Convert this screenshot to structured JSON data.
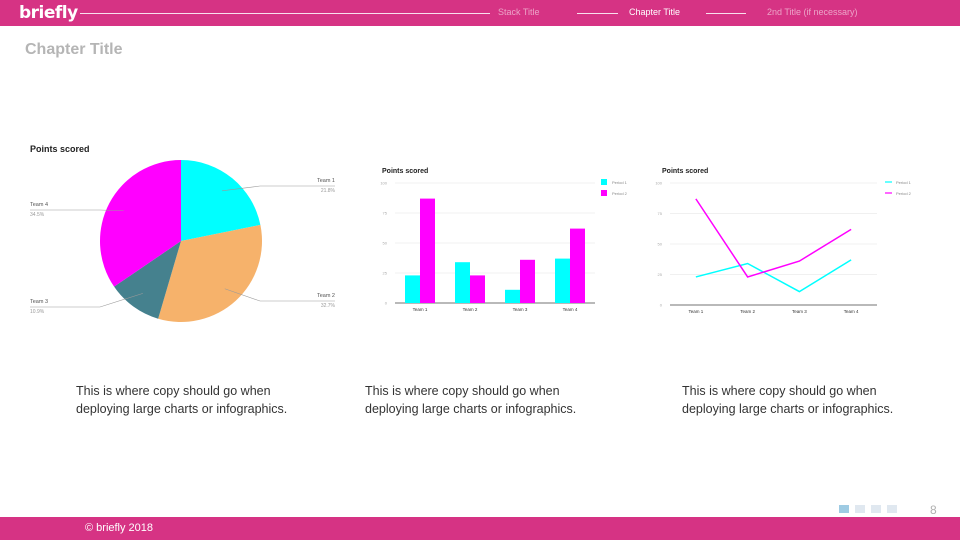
{
  "header": {
    "logo": "briefly",
    "nav": [
      {
        "label": "Stack Title",
        "active": false
      },
      {
        "label": "Chapter Title",
        "active": true
      },
      {
        "label": "2nd Title (if necessary)",
        "active": false
      }
    ]
  },
  "page_title": "Chapter Title",
  "captions": [
    "This is where copy should go when deploying large charts or infographics.",
    "This is where copy should go when deploying large charts or infographics.",
    "This is where copy should go when deploying large charts or infographics."
  ],
  "footer": {
    "copyright": "© briefly 2018",
    "page_number": "8",
    "page_dots": 4,
    "active_dot": 0
  },
  "colors": {
    "brand": "#d63384",
    "cyan": "#00ffff",
    "magenta": "#ff00ff",
    "orange": "#f6b26b",
    "teal": "#45818e"
  },
  "chart_data": [
    {
      "type": "pie",
      "title": "Points scored",
      "slices": [
        {
          "label": "Team 1",
          "value": 21.8,
          "value_label": "21.8%",
          "color": "#00ffff"
        },
        {
          "label": "Team 2",
          "value": 32.7,
          "value_label": "32.7%",
          "color": "#f6b26b"
        },
        {
          "label": "Team 3",
          "value": 10.9,
          "value_label": "10.9%",
          "color": "#45818e"
        },
        {
          "label": "Team 4",
          "value": 34.5,
          "value_label": "34.5%",
          "color": "#ff00ff"
        }
      ]
    },
    {
      "type": "bar",
      "title": "Points scored",
      "categories": [
        "Team 1",
        "Team 2",
        "Team 3",
        "Team 4"
      ],
      "series": [
        {
          "name": "Period 1",
          "values": [
            23,
            34,
            11,
            37
          ],
          "color": "#00ffff"
        },
        {
          "name": "Period 2",
          "values": [
            87,
            23,
            36,
            62
          ],
          "color": "#ff00ff"
        }
      ],
      "ylim": [
        0,
        100
      ],
      "yticks": [
        "0",
        "25",
        "50",
        "75",
        "100"
      ],
      "grid": true,
      "legend": "top-right"
    },
    {
      "type": "line",
      "title": "Points scored",
      "categories": [
        "Team 1",
        "Team 2",
        "Team 3",
        "Team 4"
      ],
      "series": [
        {
          "name": "Period 1",
          "values": [
            23,
            34,
            11,
            37
          ],
          "color": "#00ffff"
        },
        {
          "name": "Period 2",
          "values": [
            87,
            23,
            36,
            62
          ],
          "color": "#ff00ff"
        }
      ],
      "ylim": [
        0,
        100
      ],
      "yticks": [
        "0",
        "25",
        "50",
        "75",
        "100"
      ],
      "grid": true,
      "legend": "top-right"
    }
  ]
}
